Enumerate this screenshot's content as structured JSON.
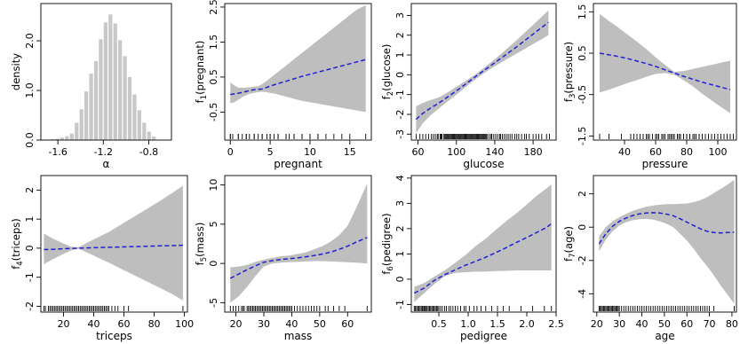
{
  "chart_data": [
    {
      "id": "alpha",
      "type": "bar",
      "xlabel": "α",
      "ylabel": "density",
      "xlim": [
        -1.75,
        -0.6
      ],
      "ylim": [
        0,
        2.75
      ],
      "xticks": [
        -1.6,
        -1.2,
        -0.8
      ],
      "xtick_labels": [
        "-1.6",
        "-1.2",
        "-0.8"
      ],
      "yticks": [
        0.0,
        1.0,
        2.0
      ],
      "ytick_labels": [
        "0.0",
        "1.0",
        "2.0"
      ],
      "bin_width": 0.0425,
      "bins": [
        {
          "x": -1.69,
          "y": 0.01
        },
        {
          "x": -1.6475,
          "y": 0.02
        },
        {
          "x": -1.605,
          "y": 0.03
        },
        {
          "x": -1.5625,
          "y": 0.05
        },
        {
          "x": -1.52,
          "y": 0.08
        },
        {
          "x": -1.4775,
          "y": 0.13
        },
        {
          "x": -1.435,
          "y": 0.35
        },
        {
          "x": -1.3925,
          "y": 0.62
        },
        {
          "x": -1.35,
          "y": 0.98
        },
        {
          "x": -1.3075,
          "y": 1.34
        },
        {
          "x": -1.265,
          "y": 1.59
        },
        {
          "x": -1.2225,
          "y": 2.03
        },
        {
          "x": -1.18,
          "y": 2.37
        },
        {
          "x": -1.1375,
          "y": 2.53
        },
        {
          "x": -1.095,
          "y": 2.35
        },
        {
          "x": -1.0525,
          "y": 2.01
        },
        {
          "x": -1.01,
          "y": 1.69
        },
        {
          "x": -0.9675,
          "y": 1.27
        },
        {
          "x": -0.925,
          "y": 0.92
        },
        {
          "x": -0.8825,
          "y": 0.6
        },
        {
          "x": -0.84,
          "y": 0.35
        },
        {
          "x": -0.7975,
          "y": 0.17
        },
        {
          "x": -0.755,
          "y": 0.07
        }
      ]
    },
    {
      "id": "pregnant",
      "type": "line",
      "xlabel": "pregnant",
      "ylabel": "f1(pregnant)",
      "ylabel_parts": [
        "f",
        "1",
        "(pregnant)"
      ],
      "xlim": [
        -0.7,
        17.7
      ],
      "ylim": [
        -1.3,
        2.6
      ],
      "xticks": [
        0,
        5,
        10,
        15
      ],
      "xtick_labels": [
        "0",
        "5",
        "10",
        "15"
      ],
      "yticks": [
        -0.5,
        0.5,
        1.5,
        2.5
      ],
      "ytick_labels": [
        "-0.5",
        "0.5",
        "1.5",
        "2.5"
      ],
      "x": [
        0,
        0.5,
        1,
        1.5,
        2,
        2.5,
        3,
        3.5,
        4,
        4.5,
        5,
        5.5,
        6,
        6.5,
        7,
        7.5,
        8,
        8.5,
        9,
        9.5,
        10,
        10.5,
        11,
        11.5,
        12,
        12.5,
        13,
        13.5,
        14,
        14.5,
        15,
        15.5,
        16,
        16.5,
        17
      ],
      "fit": [
        0.0,
        0.02,
        0.04,
        0.06,
        0.09,
        0.12,
        0.14,
        0.15,
        0.16,
        0.2,
        0.24,
        0.28,
        0.31,
        0.35,
        0.38,
        0.42,
        0.45,
        0.49,
        0.52,
        0.55,
        0.58,
        0.61,
        0.64,
        0.67,
        0.7,
        0.73,
        0.76,
        0.79,
        0.82,
        0.85,
        0.88,
        0.91,
        0.94,
        0.97,
        1.0
      ],
      "lower": [
        -0.25,
        -0.22,
        -0.15,
        -0.07,
        -0.02,
        0.03,
        0.05,
        0.07,
        0.08,
        0.07,
        0.05,
        0.03,
        0.0,
        -0.03,
        -0.06,
        -0.09,
        -0.12,
        -0.15,
        -0.18,
        -0.2,
        -0.22,
        -0.24,
        -0.26,
        -0.28,
        -0.3,
        -0.32,
        -0.34,
        -0.36,
        -0.38,
        -0.4,
        -0.42,
        -0.44,
        -0.46,
        -0.48,
        -0.5
      ],
      "upper": [
        0.35,
        0.26,
        0.2,
        0.19,
        0.2,
        0.21,
        0.23,
        0.24,
        0.3,
        0.38,
        0.47,
        0.56,
        0.65,
        0.74,
        0.83,
        0.92,
        1.01,
        1.1,
        1.19,
        1.28,
        1.37,
        1.46,
        1.55,
        1.64,
        1.73,
        1.82,
        1.91,
        2.0,
        2.09,
        2.18,
        2.27,
        2.36,
        2.44,
        2.5,
        2.55
      ],
      "rug": [
        0,
        0,
        0.3,
        1,
        1,
        1.5,
        2,
        2,
        2.4,
        3,
        3,
        3.5,
        4,
        4,
        4.6,
        5,
        5,
        5.5,
        6,
        6,
        7,
        7,
        7.4,
        8,
        8,
        9,
        9,
        10,
        10,
        11,
        11,
        12,
        13,
        14,
        15,
        17
      ]
    },
    {
      "id": "glucose",
      "type": "line",
      "xlabel": "glucose",
      "ylabel": "f2(glucose)",
      "ylabel_parts": [
        "f",
        "2",
        "(glucose)"
      ],
      "xlim": [
        53,
        204
      ],
      "ylim": [
        -3.3,
        3.6
      ],
      "xticks": [
        60,
        100,
        140,
        180
      ],
      "xtick_labels": [
        "60",
        "100",
        "140",
        "180"
      ],
      "yticks": [
        -3,
        -2,
        -1,
        0,
        1,
        2,
        3
      ],
      "ytick_labels": [
        "-3",
        "-2",
        "-1",
        "0",
        "1",
        "2",
        "3"
      ],
      "x": [
        58,
        65,
        73,
        82,
        90,
        98,
        106,
        114,
        122,
        130,
        138,
        146,
        154,
        162,
        170,
        178,
        186,
        196
      ],
      "fit": [
        -2.25,
        -1.95,
        -1.68,
        -1.42,
        -1.15,
        -0.88,
        -0.6,
        -0.31,
        -0.02,
        0.26,
        0.54,
        0.82,
        1.1,
        1.38,
        1.68,
        1.98,
        2.28,
        2.65
      ],
      "lower": [
        -2.95,
        -2.45,
        -2.05,
        -1.7,
        -1.38,
        -1.08,
        -0.77,
        -0.45,
        -0.15,
        0.12,
        0.37,
        0.6,
        0.83,
        1.05,
        1.27,
        1.5,
        1.72,
        2.0
      ],
      "upper": [
        -1.6,
        -1.42,
        -1.28,
        -1.13,
        -0.92,
        -0.67,
        -0.42,
        -0.17,
        0.1,
        0.4,
        0.71,
        1.03,
        1.37,
        1.71,
        2.07,
        2.43,
        2.8,
        3.25
      ],
      "rug": [
        58,
        62,
        65,
        68,
        71,
        74,
        76,
        78,
        80,
        81,
        83,
        84,
        85,
        87,
        88,
        89,
        90,
        91,
        92,
        93,
        94,
        95,
        96,
        97,
        98,
        99,
        100,
        101,
        102,
        103,
        104,
        105,
        106,
        107,
        108,
        109,
        110,
        111,
        112,
        113,
        114,
        115,
        116,
        117,
        118,
        119,
        120,
        121,
        122,
        123,
        124,
        125,
        126,
        127,
        128,
        129,
        130,
        131,
        132,
        134,
        136,
        137,
        139,
        141,
        143,
        145,
        146,
        148,
        150,
        152,
        154,
        156,
        158,
        161,
        163,
        165,
        168,
        171,
        173,
        176,
        180,
        183,
        186,
        189,
        194,
        197
      ]
    },
    {
      "id": "pressure",
      "type": "line",
      "xlabel": "pressure",
      "ylabel": "f3(pressure)",
      "ylabel_parts": [
        "f",
        "3",
        "(pressure)"
      ],
      "xlim": [
        20,
        112
      ],
      "ylim": [
        -1.6,
        1.7
      ],
      "xticks": [
        40,
        60,
        80,
        100
      ],
      "xtick_labels": [
        "40",
        "60",
        "80",
        "100"
      ],
      "yticks": [
        -1.5,
        -0.5,
        0.5,
        1.5
      ],
      "ytick_labels": [
        "-1.5",
        "-0.5",
        "0.5",
        "1.5"
      ],
      "x": [
        24,
        30,
        36,
        42,
        48,
        54,
        60,
        66,
        72,
        78,
        84,
        90,
        96,
        102,
        108
      ],
      "fit": [
        0.5,
        0.46,
        0.42,
        0.37,
        0.31,
        0.25,
        0.18,
        0.1,
        0.02,
        -0.06,
        -0.13,
        -0.2,
        -0.26,
        -0.32,
        -0.38
      ],
      "lower": [
        -0.45,
        -0.38,
        -0.3,
        -0.22,
        -0.15,
        -0.07,
        0.0,
        0.02,
        -0.02,
        -0.15,
        -0.3,
        -0.48,
        -0.64,
        -0.8,
        -0.95
      ],
      "upper": [
        1.45,
        1.28,
        1.12,
        0.95,
        0.78,
        0.6,
        0.4,
        0.22,
        0.05,
        0.07,
        0.12,
        0.17,
        0.22,
        0.27,
        0.32
      ],
      "rug": [
        24,
        30,
        38,
        44,
        46,
        48,
        50,
        52,
        54,
        55,
        56,
        58,
        60,
        60,
        61,
        62,
        62,
        64,
        64,
        65,
        66,
        66,
        68,
        68,
        69,
        70,
        70,
        71,
        72,
        72,
        74,
        74,
        75,
        76,
        76,
        78,
        78,
        80,
        80,
        82,
        82,
        84,
        85,
        86,
        88,
        88,
        90,
        92,
        94,
        96,
        98,
        100,
        102,
        104,
        106,
        108,
        110
      ]
    },
    {
      "id": "triceps",
      "type": "line",
      "xlabel": "triceps",
      "ylabel": "f4(triceps)",
      "ylabel_parts": [
        "f",
        "4",
        "(triceps)"
      ],
      "xlim": [
        5,
        102
      ],
      "ylim": [
        -2.2,
        2.5
      ],
      "xticks": [
        20,
        40,
        60,
        80,
        100
      ],
      "xtick_labels": [
        "20",
        "40",
        "60",
        "80",
        "100"
      ],
      "yticks": [
        -2,
        -1,
        0,
        1,
        2
      ],
      "ytick_labels": [
        "-2",
        "-1",
        "0",
        "1",
        "2"
      ],
      "x": [
        7,
        13,
        19,
        25,
        30,
        36,
        43,
        50,
        57,
        64,
        71,
        78,
        85,
        92,
        99
      ],
      "fit": [
        -0.05,
        -0.04,
        -0.02,
        -0.01,
        0.0,
        0.01,
        0.02,
        0.03,
        0.04,
        0.05,
        0.06,
        0.07,
        0.08,
        0.09,
        0.1
      ],
      "lower": [
        -0.55,
        -0.38,
        -0.22,
        -0.08,
        -0.02,
        -0.16,
        -0.33,
        -0.5,
        -0.68,
        -0.86,
        -1.04,
        -1.22,
        -1.4,
        -1.58,
        -1.8
      ],
      "upper": [
        0.5,
        0.33,
        0.18,
        0.05,
        0.03,
        0.2,
        0.38,
        0.56,
        0.78,
        1.0,
        1.22,
        1.44,
        1.67,
        1.9,
        2.15
      ],
      "rug": [
        7,
        8,
        10,
        11,
        12,
        13,
        14,
        15,
        16,
        17,
        18,
        19,
        20,
        21,
        22,
        23,
        24,
        25,
        26,
        27,
        28,
        29,
        30,
        31,
        32,
        33,
        34,
        35,
        36,
        37,
        38,
        39,
        40,
        41,
        42,
        43,
        44,
        45,
        46,
        47,
        48,
        49,
        50,
        52,
        54,
        56,
        60,
        63,
        99
      ]
    },
    {
      "id": "mass",
      "type": "line",
      "xlabel": "mass",
      "ylabel": "f5(mass)",
      "ylabel_parts": [
        "f",
        "5",
        "(mass)"
      ],
      "xlim": [
        16,
        68.5
      ],
      "ylim": [
        -6.2,
        11.2
      ],
      "xticks": [
        20,
        30,
        40,
        50,
        60
      ],
      "xtick_labels": [
        "20",
        "30",
        "40",
        "50",
        "60"
      ],
      "yticks": [
        -5,
        0,
        5,
        10
      ],
      "ytick_labels": [
        "-5",
        "0",
        "5",
        "10"
      ],
      "x": [
        18,
        21,
        24,
        27,
        30,
        33,
        36,
        39,
        42,
        45,
        48,
        51,
        54,
        57,
        60,
        63,
        67
      ],
      "fit": [
        -1.9,
        -1.35,
        -0.8,
        -0.3,
        0.15,
        0.35,
        0.5,
        0.6,
        0.7,
        0.85,
        1.0,
        1.2,
        1.45,
        1.8,
        2.2,
        2.7,
        3.3
      ],
      "lower": [
        -5.0,
        -4.2,
        -3.0,
        -1.6,
        -0.4,
        0.0,
        0.1,
        0.15,
        0.2,
        0.25,
        0.3,
        0.3,
        0.25,
        0.2,
        0.15,
        0.1,
        0.0
      ],
      "upper": [
        -0.5,
        -0.4,
        -0.2,
        0.2,
        0.5,
        0.7,
        0.9,
        1.0,
        1.2,
        1.4,
        1.8,
        2.2,
        2.8,
        3.6,
        4.8,
        7.0,
        10.2
      ],
      "rug": [
        18,
        19,
        20,
        21,
        22,
        22.5,
        23,
        24,
        24.5,
        25,
        25.5,
        26,
        26.5,
        27,
        27.5,
        28,
        28.5,
        29,
        29.5,
        30,
        30.5,
        31,
        31.5,
        32,
        32.5,
        33,
        33.5,
        34,
        34.5,
        35,
        35.5,
        36,
        36.5,
        37,
        37.5,
        38,
        38.5,
        39,
        39.5,
        40,
        41,
        42,
        43,
        44,
        45,
        46,
        47,
        48,
        49,
        50,
        52,
        53,
        55,
        57,
        59,
        67
      ]
    },
    {
      "id": "pedigree",
      "type": "line",
      "xlabel": "pedigree",
      "ylabel": "f6(pedigree)",
      "ylabel_parts": [
        "f",
        "6",
        "(pedigree)"
      ],
      "xlim": [
        0.03,
        2.5
      ],
      "ylim": [
        -1.3,
        4.1
      ],
      "xticks": [
        0.5,
        1.0,
        1.5,
        2.0,
        2.5
      ],
      "xtick_labels": [
        "0.5",
        "1.0",
        "1.5",
        "2.0",
        "2.5"
      ],
      "yticks": [
        -1,
        0,
        1,
        2,
        3,
        4
      ],
      "ytick_labels": [
        "-1",
        "0",
        "1",
        "2",
        "3",
        "4"
      ],
      "x": [
        0.08,
        0.25,
        0.42,
        0.6,
        0.78,
        0.95,
        1.12,
        1.3,
        1.47,
        1.65,
        1.82,
        2.0,
        2.17,
        2.34,
        2.42
      ],
      "fit": [
        -0.55,
        -0.35,
        -0.05,
        0.18,
        0.37,
        0.55,
        0.7,
        0.87,
        1.05,
        1.25,
        1.45,
        1.65,
        1.85,
        2.05,
        2.2
      ],
      "lower": [
        -0.9,
        -0.55,
        -0.2,
        0.12,
        0.25,
        0.28,
        0.3,
        0.3,
        0.32,
        0.33,
        0.35,
        0.35,
        0.35,
        0.35,
        0.35
      ],
      "upper": [
        -0.3,
        -0.15,
        0.1,
        0.35,
        0.65,
        0.95,
        1.3,
        1.6,
        1.95,
        2.3,
        2.6,
        2.95,
        3.3,
        3.6,
        3.75
      ],
      "rug": [
        0.08,
        0.1,
        0.12,
        0.14,
        0.16,
        0.18,
        0.2,
        0.22,
        0.24,
        0.25,
        0.26,
        0.28,
        0.3,
        0.32,
        0.34,
        0.36,
        0.38,
        0.4,
        0.42,
        0.44,
        0.46,
        0.48,
        0.5,
        0.53,
        0.56,
        0.6,
        0.63,
        0.67,
        0.7,
        0.74,
        0.78,
        0.82,
        0.87,
        0.93,
        0.96,
        1.02,
        1.1,
        1.15,
        1.22,
        1.3,
        1.4,
        1.5,
        1.6,
        1.7,
        1.9,
        2.1,
        2.3,
        2.42
      ]
    },
    {
      "id": "age",
      "type": "line",
      "xlabel": "age",
      "ylabel": "f7(age)",
      "ylabel_parts": [
        "f",
        "7",
        "(age)"
      ],
      "xlim": [
        18.5,
        82
      ],
      "ylim": [
        -5.1,
        3.1
      ],
      "xticks": [
        20,
        30,
        40,
        50,
        60,
        70,
        80
      ],
      "xtick_labels": [
        "20",
        "30",
        "40",
        "50",
        "60",
        "70",
        "80"
      ],
      "yticks": [
        -4,
        -2,
        0,
        2
      ],
      "ytick_labels": [
        "-4",
        "-2",
        "0",
        "2"
      ],
      "x": [
        21,
        24,
        27,
        30,
        33,
        36,
        39,
        42,
        45,
        48,
        51,
        54,
        57,
        60,
        63,
        66,
        69,
        72,
        75,
        78,
        81
      ],
      "fit": [
        -1.0,
        -0.4,
        0.05,
        0.35,
        0.55,
        0.7,
        0.8,
        0.85,
        0.87,
        0.85,
        0.78,
        0.68,
        0.5,
        0.3,
        0.1,
        -0.1,
        -0.25,
        -0.32,
        -0.35,
        -0.32,
        -0.3
      ],
      "lower": [
        -1.45,
        -0.75,
        -0.25,
        0.1,
        0.3,
        0.42,
        0.48,
        0.5,
        0.45,
        0.35,
        0.2,
        0.0,
        -0.4,
        -0.8,
        -1.3,
        -1.85,
        -2.35,
        -2.9,
        -3.5,
        -4.05,
        -4.6
      ],
      "upper": [
        -0.55,
        0.0,
        0.35,
        0.6,
        0.8,
        0.98,
        1.12,
        1.22,
        1.3,
        1.35,
        1.38,
        1.38,
        1.4,
        1.42,
        1.5,
        1.62,
        1.8,
        2.05,
        2.3,
        2.55,
        2.85
      ],
      "rug": [
        21,
        21.5,
        22,
        22.5,
        23,
        23.5,
        24,
        24.5,
        25,
        25.5,
        26,
        26.5,
        27,
        27.5,
        28,
        28.5,
        29,
        29.5,
        30,
        31,
        32,
        33,
        34,
        35,
        36,
        37,
        38,
        39,
        40,
        41,
        42,
        43,
        44,
        45,
        46,
        47,
        48,
        49,
        50,
        51,
        52,
        53,
        54,
        55,
        56,
        57,
        58,
        59,
        60,
        61,
        62,
        63,
        64,
        65,
        66,
        67,
        68,
        69,
        70,
        72,
        81
      ]
    }
  ]
}
